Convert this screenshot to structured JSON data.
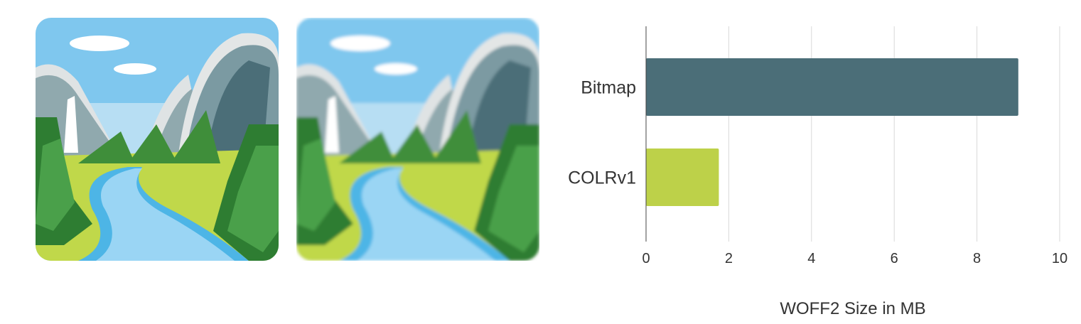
{
  "images": [
    {
      "name": "national-park-emoji-colrv1",
      "style": "vector"
    },
    {
      "name": "national-park-emoji-bitmap",
      "style": "blurred bitmap"
    }
  ],
  "chart_data": {
    "type": "bar",
    "orientation": "horizontal",
    "categories": [
      "Bitmap",
      "COLRv1"
    ],
    "values": [
      9.0,
      1.76
    ],
    "colors": [
      "#4b6e78",
      "#bdd149"
    ],
    "title": "",
    "xlabel": "WOFF2 Size in MB",
    "ylabel": "",
    "xlim": [
      0,
      10
    ],
    "xticks": [
      "0",
      "2",
      "4",
      "6",
      "8",
      "10"
    ],
    "grid": "vertical"
  }
}
